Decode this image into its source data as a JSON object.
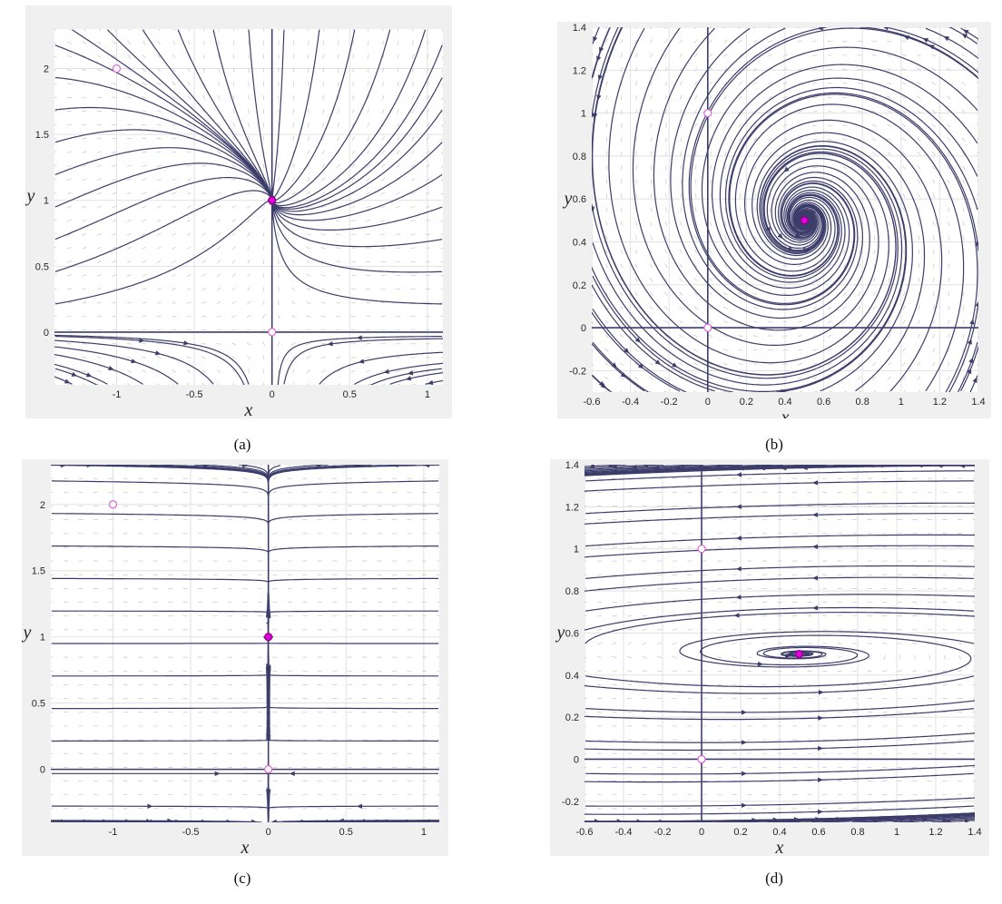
{
  "colors": {
    "streamline": "#3d3d6b",
    "stable": "#e000d8",
    "unstable_stroke": "#e060d8",
    "grid": "#e1e1e1",
    "panel_bg": "#f0f0f0",
    "plot_bg": "#ffffff",
    "arrow_field": "#c6c6c6"
  },
  "chart_data": [
    {
      "id": "a",
      "caption": "(a)",
      "type": "streamline",
      "xlabel": "x",
      "ylabel": "y",
      "xlim": [
        -1.4,
        1.1
      ],
      "ylim": [
        -0.4,
        2.3
      ],
      "xticks": [
        -1,
        -0.5,
        0,
        0.5,
        1
      ],
      "xtick_labels": [
        "-1",
        "-0.5",
        "0",
        "0.5",
        "1"
      ],
      "yticks": [
        0,
        0.5,
        1,
        1.5,
        2
      ],
      "ytick_labels": [
        "0",
        "0.5",
        "1",
        "1.5",
        "2"
      ],
      "equilibria": [
        {
          "x": -1,
          "y": 2,
          "kind": "unstable"
        },
        {
          "x": 0,
          "y": 1,
          "kind": "stable"
        },
        {
          "x": 0,
          "y": 0,
          "kind": "unstable"
        }
      ]
    },
    {
      "id": "b",
      "caption": "(b)",
      "type": "streamline",
      "xlabel": "x",
      "ylabel": "y",
      "xlim": [
        -0.6,
        1.4
      ],
      "ylim": [
        -0.3,
        1.4
      ],
      "xticks": [
        -0.6,
        -0.4,
        -0.2,
        0,
        0.2,
        0.4,
        0.6,
        0.8,
        1,
        1.2,
        1.4
      ],
      "xtick_labels": [
        "-0.6",
        "-0.4",
        "-0.2",
        "0",
        "0.2",
        "0.4",
        "0.6",
        "0.8",
        "1",
        "1.2",
        "1.4"
      ],
      "yticks": [
        -0.2,
        0,
        0.2,
        0.4,
        0.6,
        0.8,
        1,
        1.2,
        1.4
      ],
      "ytick_labels": [
        "-0.2",
        "0",
        "0.2",
        "0.4",
        "0.6",
        "0.8",
        "1",
        "1.2",
        "1.4"
      ],
      "equilibria": [
        {
          "x": 0,
          "y": 1,
          "kind": "unstable"
        },
        {
          "x": 0.5,
          "y": 0.5,
          "kind": "stable"
        },
        {
          "x": 0,
          "y": 0,
          "kind": "unstable"
        }
      ]
    },
    {
      "id": "c",
      "caption": "(c)",
      "type": "streamline",
      "xlabel": "x",
      "ylabel": "y",
      "xlim": [
        -1.4,
        1.1
      ],
      "ylim": [
        -0.4,
        2.3
      ],
      "xticks": [
        -1,
        -0.5,
        0,
        0.5,
        1
      ],
      "xtick_labels": [
        "-1",
        "-0.5",
        "0",
        "0.5",
        "1"
      ],
      "yticks": [
        0,
        0.5,
        1,
        1.5,
        2
      ],
      "ytick_labels": [
        "0",
        "0.5",
        "1",
        "1.5",
        "2"
      ],
      "equilibria": [
        {
          "x": -1,
          "y": 2,
          "kind": "unstable"
        },
        {
          "x": 0,
          "y": 1,
          "kind": "stable"
        },
        {
          "x": 0,
          "y": 0,
          "kind": "unstable"
        }
      ]
    },
    {
      "id": "d",
      "caption": "(d)",
      "type": "streamline",
      "xlabel": "x",
      "ylabel": "y",
      "xlim": [
        -0.6,
        1.4
      ],
      "ylim": [
        -0.3,
        1.4
      ],
      "xticks": [
        -0.6,
        -0.4,
        -0.2,
        0,
        0.2,
        0.4,
        0.6,
        0.8,
        1,
        1.2,
        1.4
      ],
      "xtick_labels": [
        "-0.6",
        "-0.4",
        "-0.2",
        "0",
        "0.2",
        "0.4",
        "0.6",
        "0.8",
        "1",
        "1.2",
        "1.4"
      ],
      "yticks": [
        -0.2,
        0,
        0.2,
        0.4,
        0.6,
        0.8,
        1,
        1.2,
        1.4
      ],
      "ytick_labels": [
        "-0.2",
        "0",
        "0.2",
        "0.4",
        "0.6",
        "0.8",
        "1",
        "1.2",
        "1.4"
      ],
      "equilibria": [
        {
          "x": 0,
          "y": 1,
          "kind": "unstable"
        },
        {
          "x": 0.5,
          "y": 0.5,
          "kind": "stable"
        },
        {
          "x": 0,
          "y": 0,
          "kind": "unstable"
        }
      ]
    }
  ]
}
